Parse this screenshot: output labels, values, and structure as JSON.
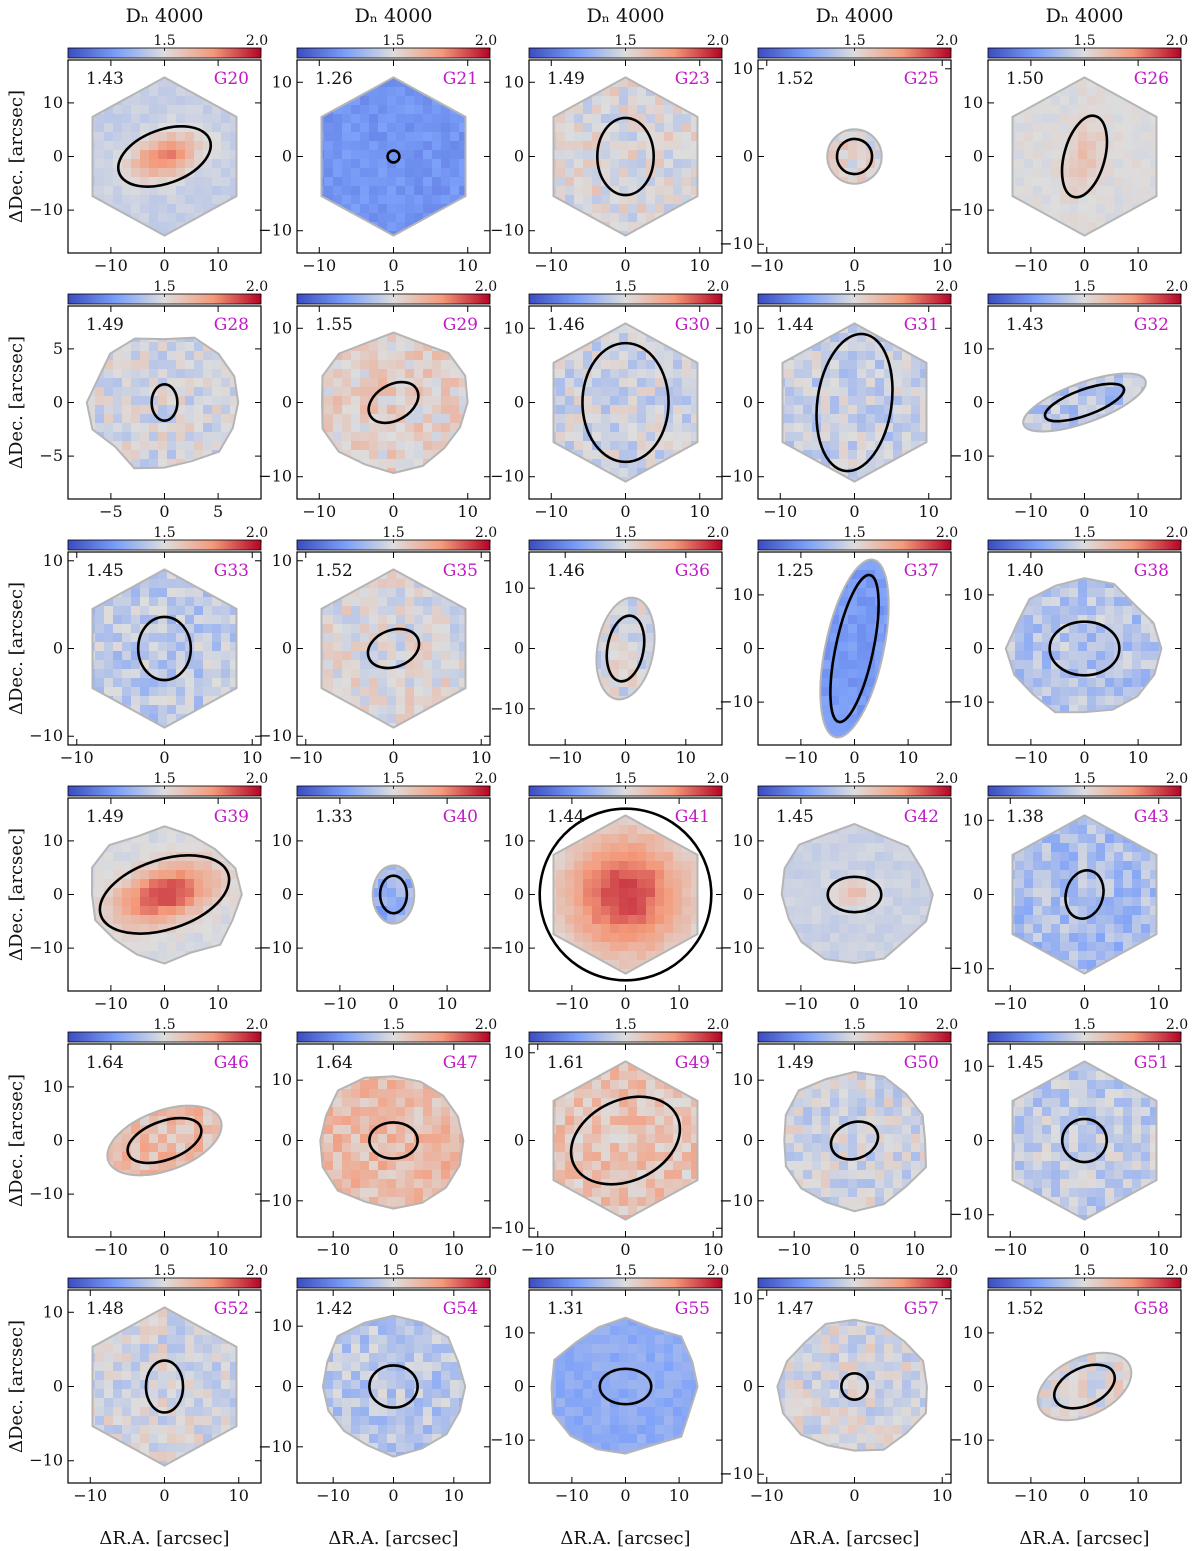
{
  "chart_data": {
    "type": "heatmap",
    "quantity": "D$_n$4000",
    "column_titles": [
      "Dₙ 4000",
      "Dₙ 4000",
      "Dₙ 4000",
      "Dₙ 4000",
      "Dₙ 4000"
    ],
    "xlabel": "ΔR.A. [arcsec]",
    "ylabel": "ΔDec. [arcsec]",
    "colorbar": {
      "range": [
        1.0,
        2.0
      ],
      "ticks": [
        "1.5",
        "2.0"
      ],
      "colormap": "coolwarm"
    },
    "colors": {
      "id_label": "#c218c8",
      "outline": "#b5b5b5",
      "ellipse": "#000000"
    },
    "panels": [
      {
        "id": "G20",
        "value": "1.43",
        "lim": 18,
        "ticks": [
          -10,
          0,
          10
        ],
        "ellipse": [
          0,
          0,
          9,
          5,
          -20
        ],
        "shape": "hex",
        "map": "center",
        "base": 1.44,
        "peak": 1.8
      },
      {
        "id": "G21",
        "value": "1.26",
        "lim": 13,
        "ticks": [
          -10,
          0,
          10
        ],
        "ellipse": [
          0,
          0,
          0.8,
          0.8,
          0
        ],
        "shape": "hex",
        "map": "flat",
        "base": 1.22,
        "peak": 1.22
      },
      {
        "id": "G23",
        "value": "1.49",
        "lim": 13,
        "ticks": [
          -10,
          0,
          10
        ],
        "ellipse": [
          0,
          0,
          3.8,
          5.2,
          0
        ],
        "shape": "hex",
        "map": "patchy",
        "base": 1.5,
        "peak": 1.5
      },
      {
        "id": "G25",
        "value": "1.52",
        "lim": 11,
        "ticks": [
          -10,
          0,
          10
        ],
        "ellipse": [
          0,
          0,
          2,
          2,
          -40
        ],
        "shape": "ellipse",
        "map": "patchy",
        "base": 1.52,
        "peak": 1.52
      },
      {
        "id": "G26",
        "value": "1.50",
        "lim": 18,
        "ticks": [
          -10,
          0,
          10
        ],
        "ellipse": [
          0,
          0,
          3.8,
          7.8,
          15
        ],
        "shape": "hex",
        "map": "center",
        "base": 1.5,
        "peak": 1.62
      },
      {
        "id": "G28",
        "value": "1.49",
        "lim": 9,
        "ticks": [
          -5,
          0,
          5
        ],
        "ellipse": [
          0,
          0,
          1.2,
          1.7,
          0
        ],
        "shape": "blob",
        "map": "patchy",
        "base": 1.48,
        "peak": 1.48
      },
      {
        "id": "G29",
        "value": "1.55",
        "lim": 13,
        "ticks": [
          -10,
          0,
          10
        ],
        "ellipse": [
          0,
          0,
          3.6,
          2.4,
          -30
        ],
        "shape": "blob",
        "map": "patchy",
        "base": 1.55,
        "peak": 1.55
      },
      {
        "id": "G30",
        "value": "1.46",
        "lim": 13,
        "ticks": [
          -10,
          0,
          10
        ],
        "ellipse": [
          0,
          0,
          5.8,
          8,
          0
        ],
        "shape": "hex",
        "map": "patchy",
        "base": 1.46,
        "peak": 1.46
      },
      {
        "id": "G31",
        "value": "1.44",
        "lim": 13,
        "ticks": [
          -10,
          0,
          10
        ],
        "ellipse": [
          0,
          0,
          5,
          9.3,
          8
        ],
        "shape": "hex",
        "map": "patchy",
        "base": 1.45,
        "peak": 1.45
      },
      {
        "id": "G32",
        "value": "1.43",
        "lim": 18,
        "ticks": [
          -10,
          0,
          10
        ],
        "ellipse": [
          0,
          0,
          7.8,
          2.4,
          -20
        ],
        "shape": "ellipse",
        "map": "patchy",
        "base": 1.4,
        "peak": 1.4
      },
      {
        "id": "G33",
        "value": "1.45",
        "lim": 11,
        "ticks": [
          -10,
          0,
          10
        ],
        "ellipse": [
          0,
          0,
          3,
          3.6,
          0
        ],
        "shape": "hex",
        "map": "patchy",
        "base": 1.42,
        "peak": 1.42
      },
      {
        "id": "G35",
        "value": "1.52",
        "lim": 11,
        "ticks": [
          -10,
          0,
          10
        ],
        "ellipse": [
          0,
          0,
          3,
          2.1,
          -20
        ],
        "shape": "hex",
        "map": "patchy",
        "base": 1.5,
        "peak": 1.5
      },
      {
        "id": "G36",
        "value": "1.46",
        "lim": 16,
        "ticks": [
          -10,
          0,
          10
        ],
        "ellipse": [
          0,
          0,
          3,
          5.5,
          10
        ],
        "shape": "ellipse",
        "map": "patchy",
        "base": 1.48,
        "peak": 1.48
      },
      {
        "id": "G37",
        "value": "1.25",
        "lim": 18,
        "ticks": [
          -10,
          0,
          10
        ],
        "ellipse": [
          0,
          0,
          3.5,
          14,
          12
        ],
        "shape": "ellipse",
        "map": "flat",
        "base": 1.24,
        "peak": 1.3
      },
      {
        "id": "G38",
        "value": "1.40",
        "lim": 18,
        "ticks": [
          -10,
          0,
          10
        ],
        "ellipse": [
          0,
          0,
          6.5,
          5,
          0
        ],
        "shape": "blob",
        "map": "patchy",
        "base": 1.4,
        "peak": 1.4
      },
      {
        "id": "G39",
        "value": "1.49",
        "lim": 18,
        "ticks": [
          -10,
          0,
          10
        ],
        "ellipse": [
          0,
          0,
          12.5,
          6.5,
          -18
        ],
        "shape": "blob",
        "map": "center",
        "base": 1.48,
        "peak": 1.9
      },
      {
        "id": "G40",
        "value": "1.33",
        "lim": 18,
        "ticks": [
          -10,
          0,
          10
        ],
        "ellipse": [
          0,
          0,
          2.5,
          3.5,
          0
        ],
        "shape": "ellipse",
        "map": "patchy",
        "base": 1.32,
        "peak": 1.32
      },
      {
        "id": "G41",
        "value": "1.44",
        "lim": 18,
        "ticks": [
          -10,
          0,
          10
        ],
        "ellipse": [
          0,
          0,
          16,
          16,
          -35
        ],
        "shape": "hex",
        "map": "center",
        "base": 1.44,
        "peak": 1.9
      },
      {
        "id": "G42",
        "value": "1.45",
        "lim": 18,
        "ticks": [
          -10,
          0,
          10
        ],
        "ellipse": [
          0,
          0,
          5,
          3.3,
          0
        ],
        "shape": "blob",
        "map": "center",
        "base": 1.45,
        "peak": 1.62
      },
      {
        "id": "G43",
        "value": "1.38",
        "lim": 13,
        "ticks": [
          -10,
          0,
          10
        ],
        "ellipse": [
          0,
          0,
          2.5,
          3.3,
          15
        ],
        "shape": "hex",
        "map": "patchy",
        "base": 1.37,
        "peak": 1.37
      },
      {
        "id": "G46",
        "value": "1.64",
        "lim": 18,
        "ticks": [
          -10,
          0,
          10
        ],
        "ellipse": [
          0,
          0,
          7.2,
          3.6,
          -20
        ],
        "shape": "ellipse",
        "map": "patchy",
        "base": 1.62,
        "peak": 1.62
      },
      {
        "id": "G47",
        "value": "1.64",
        "lim": 16,
        "ticks": [
          -10,
          0,
          10
        ],
        "ellipse": [
          0,
          0,
          4,
          3,
          0
        ],
        "shape": "blob",
        "map": "patchy",
        "base": 1.63,
        "peak": 1.63
      },
      {
        "id": "G49",
        "value": "1.61",
        "lim": 11,
        "ticks": [
          -10,
          0,
          10
        ],
        "ellipse": [
          0,
          0,
          6.5,
          4.6,
          -25
        ],
        "shape": "hex",
        "map": "patchy",
        "base": 1.6,
        "peak": 1.6
      },
      {
        "id": "G50",
        "value": "1.49",
        "lim": 16,
        "ticks": [
          -10,
          0,
          10
        ],
        "ellipse": [
          0,
          0,
          4,
          3,
          -20
        ],
        "shape": "blob",
        "map": "patchy",
        "base": 1.47,
        "peak": 1.47
      },
      {
        "id": "G51",
        "value": "1.45",
        "lim": 13,
        "ticks": [
          -10,
          0,
          10
        ],
        "ellipse": [
          0,
          0,
          3,
          2.9,
          0
        ],
        "shape": "hex",
        "map": "patchy",
        "base": 1.43,
        "peak": 1.43
      },
      {
        "id": "G52",
        "value": "1.48",
        "lim": 13,
        "ticks": [
          -10,
          0,
          10
        ],
        "ellipse": [
          0,
          0,
          2.5,
          3.5,
          0
        ],
        "shape": "hex",
        "map": "patchy",
        "base": 1.48,
        "peak": 1.48
      },
      {
        "id": "G54",
        "value": "1.42",
        "lim": 16,
        "ticks": [
          -10,
          0,
          10
        ],
        "ellipse": [
          0,
          0,
          4,
          3.5,
          0
        ],
        "shape": "blob",
        "map": "patchy",
        "base": 1.41,
        "peak": 1.41
      },
      {
        "id": "G55",
        "value": "1.31",
        "lim": 18,
        "ticks": [
          -10,
          0,
          10
        ],
        "ellipse": [
          0,
          0,
          4.8,
          3.3,
          0
        ],
        "shape": "blob",
        "map": "flat",
        "base": 1.3,
        "peak": 1.3
      },
      {
        "id": "G57",
        "value": "1.47",
        "lim": 11,
        "ticks": [
          -10,
          0,
          10
        ],
        "ellipse": [
          0,
          0,
          1.5,
          1.5,
          0
        ],
        "shape": "blob",
        "map": "patchy",
        "base": 1.48,
        "peak": 1.48
      },
      {
        "id": "G58",
        "value": "1.52",
        "lim": 18,
        "ticks": [
          -10,
          0,
          10
        ],
        "ellipse": [
          0,
          0,
          6,
          3.5,
          -25
        ],
        "shape": "ellipse",
        "map": "patchy",
        "base": 1.5,
        "peak": 1.5
      }
    ]
  }
}
